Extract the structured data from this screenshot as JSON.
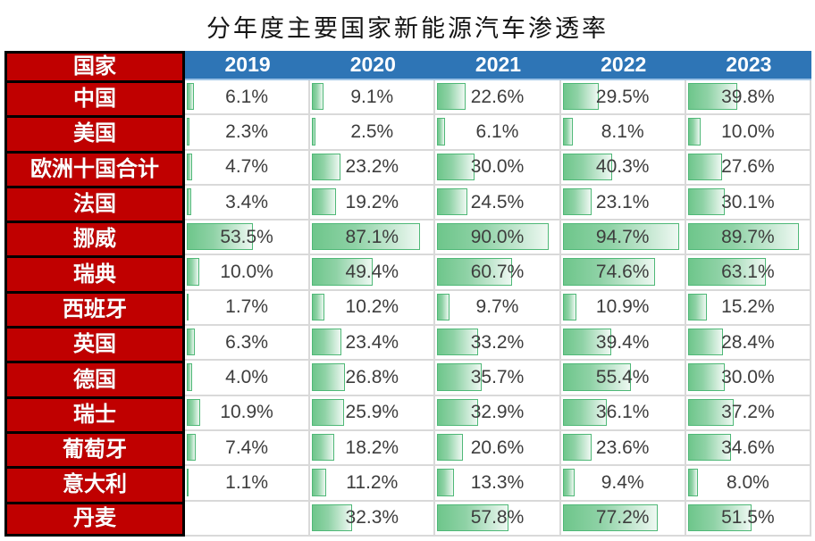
{
  "title": "分年度主要国家新能源汽车渗透率",
  "table": {
    "corner_header": "国家",
    "year_headers": [
      "2019",
      "2020",
      "2021",
      "2022",
      "2023"
    ],
    "value_suffix": "%"
  },
  "colors": {
    "row_header_red": "#c00000",
    "year_header_blue": "#2e75b6",
    "header_underline_blue": "#9dc3e6",
    "bar_fill_green": "#6ec68b",
    "bar_border_green": "#4fb877",
    "grid_line_gray": "#d9d9d9",
    "value_text": "#3d3d3d",
    "row_header_text": "#ffffff",
    "table_border_black": "#000000"
  },
  "chart_data": {
    "type": "table",
    "title": "分年度主要国家新能源汽车渗透率",
    "categories": [
      "2019",
      "2020",
      "2021",
      "2022",
      "2023"
    ],
    "unit": "%",
    "bar_style": "green-gradient-databar",
    "bar_scale": [
      0,
      100
    ],
    "series": [
      {
        "name": "中国",
        "values": [
          6.1,
          9.1,
          22.6,
          29.5,
          39.8
        ]
      },
      {
        "name": "美国",
        "values": [
          2.3,
          2.5,
          6.1,
          8.1,
          10.0
        ]
      },
      {
        "name": "欧洲十国合计",
        "values": [
          4.7,
          23.2,
          30.0,
          40.3,
          27.6
        ]
      },
      {
        "name": "法国",
        "values": [
          3.4,
          19.2,
          24.5,
          23.1,
          30.1
        ]
      },
      {
        "name": "挪威",
        "values": [
          53.5,
          87.1,
          90.0,
          94.7,
          89.7
        ]
      },
      {
        "name": "瑞典",
        "values": [
          10.0,
          49.4,
          60.7,
          74.6,
          63.1
        ]
      },
      {
        "name": "西班牙",
        "values": [
          1.7,
          10.2,
          9.7,
          10.9,
          15.2
        ]
      },
      {
        "name": "英国",
        "values": [
          6.3,
          23.4,
          33.2,
          39.4,
          28.4
        ]
      },
      {
        "name": "德国",
        "values": [
          4.0,
          26.8,
          35.7,
          55.4,
          30.0
        ]
      },
      {
        "name": "瑞士",
        "values": [
          10.9,
          25.9,
          32.9,
          36.1,
          37.2
        ]
      },
      {
        "name": "葡萄牙",
        "values": [
          7.4,
          18.2,
          20.6,
          23.6,
          34.6
        ]
      },
      {
        "name": "意大利",
        "values": [
          1.1,
          11.2,
          13.3,
          9.4,
          8.0
        ]
      },
      {
        "name": "丹麦",
        "values": [
          null,
          32.3,
          57.8,
          77.2,
          51.5
        ]
      }
    ]
  }
}
